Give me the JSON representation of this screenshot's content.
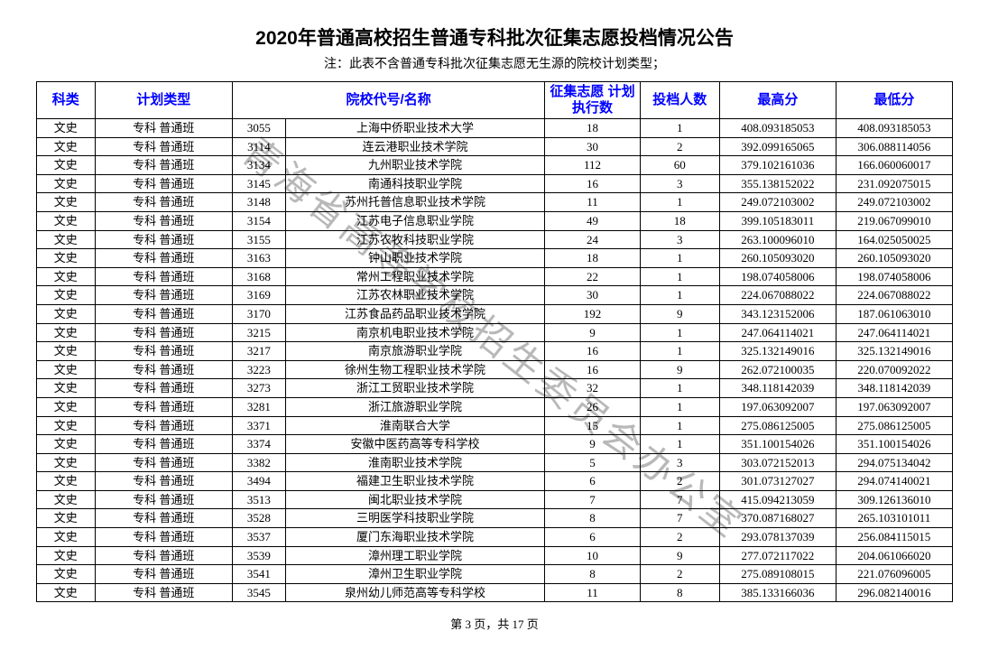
{
  "title": "2020年普通高校招生普通专科批次征集志愿投档情况公告",
  "subtitle": "注：此表不含普通专科批次征集志愿无生源的院校计划类型；",
  "watermark": "青海省高等学校招生委员会办公室",
  "footer": "第 3 页，共 17 页",
  "headers": {
    "col1": "科类",
    "col2": "计划类型",
    "col34": "院校代号/名称",
    "col5": "征集志愿\n计划执行数",
    "col6": "投档人数",
    "col7": "最高分",
    "col8": "最低分"
  },
  "rows": [
    {
      "subj": "文史",
      "plan": "专科 普通班",
      "code": "3055",
      "school": "上海中侨职业技术大学",
      "cnt": "18",
      "adm": "1",
      "max": "408.093185053",
      "min": "408.093185053"
    },
    {
      "subj": "文史",
      "plan": "专科 普通班",
      "code": "3114",
      "school": "连云港职业技术学院",
      "cnt": "30",
      "adm": "2",
      "max": "392.099165065",
      "min": "306.088114056"
    },
    {
      "subj": "文史",
      "plan": "专科 普通班",
      "code": "3134",
      "school": "九州职业技术学院",
      "cnt": "112",
      "adm": "60",
      "max": "379.102161036",
      "min": "166.060060017"
    },
    {
      "subj": "文史",
      "plan": "专科 普通班",
      "code": "3145",
      "school": "南通科技职业学院",
      "cnt": "16",
      "adm": "3",
      "max": "355.138152022",
      "min": "231.092075015"
    },
    {
      "subj": "文史",
      "plan": "专科 普通班",
      "code": "3148",
      "school": "苏州托普信息职业技术学院",
      "cnt": "11",
      "adm": "1",
      "max": "249.072103002",
      "min": "249.072103002"
    },
    {
      "subj": "文史",
      "plan": "专科 普通班",
      "code": "3154",
      "school": "江苏电子信息职业学院",
      "cnt": "49",
      "adm": "18",
      "max": "399.105183011",
      "min": "219.067099010"
    },
    {
      "subj": "文史",
      "plan": "专科 普通班",
      "code": "3155",
      "school": "江苏农牧科技职业学院",
      "cnt": "24",
      "adm": "3",
      "max": "263.100096010",
      "min": "164.025050025"
    },
    {
      "subj": "文史",
      "plan": "专科 普通班",
      "code": "3163",
      "school": "钟山职业技术学院",
      "cnt": "18",
      "adm": "1",
      "max": "260.105093020",
      "min": "260.105093020"
    },
    {
      "subj": "文史",
      "plan": "专科 普通班",
      "code": "3168",
      "school": "常州工程职业技术学院",
      "cnt": "22",
      "adm": "1",
      "max": "198.074058006",
      "min": "198.074058006"
    },
    {
      "subj": "文史",
      "plan": "专科 普通班",
      "code": "3169",
      "school": "江苏农林职业技术学院",
      "cnt": "30",
      "adm": "1",
      "max": "224.067088022",
      "min": "224.067088022"
    },
    {
      "subj": "文史",
      "plan": "专科 普通班",
      "code": "3170",
      "school": "江苏食品药品职业技术学院",
      "cnt": "192",
      "adm": "9",
      "max": "343.123152006",
      "min": "187.061063010"
    },
    {
      "subj": "文史",
      "plan": "专科 普通班",
      "code": "3215",
      "school": "南京机电职业技术学院",
      "cnt": "9",
      "adm": "1",
      "max": "247.064114021",
      "min": "247.064114021"
    },
    {
      "subj": "文史",
      "plan": "专科 普通班",
      "code": "3217",
      "school": "南京旅游职业学院",
      "cnt": "16",
      "adm": "1",
      "max": "325.132149016",
      "min": "325.132149016"
    },
    {
      "subj": "文史",
      "plan": "专科 普通班",
      "code": "3223",
      "school": "徐州生物工程职业技术学院",
      "cnt": "16",
      "adm": "9",
      "max": "262.072100035",
      "min": "220.070092022"
    },
    {
      "subj": "文史",
      "plan": "专科 普通班",
      "code": "3273",
      "school": "浙江工贸职业技术学院",
      "cnt": "32",
      "adm": "1",
      "max": "348.118142039",
      "min": "348.118142039"
    },
    {
      "subj": "文史",
      "plan": "专科 普通班",
      "code": "3281",
      "school": "浙江旅游职业学院",
      "cnt": "26",
      "adm": "1",
      "max": "197.063092007",
      "min": "197.063092007"
    },
    {
      "subj": "文史",
      "plan": "专科 普通班",
      "code": "3371",
      "school": "淮南联合大学",
      "cnt": "15",
      "adm": "1",
      "max": "275.086125005",
      "min": "275.086125005"
    },
    {
      "subj": "文史",
      "plan": "专科 普通班",
      "code": "3374",
      "school": "安徽中医药高等专科学校",
      "cnt": "9",
      "adm": "1",
      "max": "351.100154026",
      "min": "351.100154026"
    },
    {
      "subj": "文史",
      "plan": "专科 普通班",
      "code": "3382",
      "school": "淮南职业技术学院",
      "cnt": "5",
      "adm": "3",
      "max": "303.072152013",
      "min": "294.075134042"
    },
    {
      "subj": "文史",
      "plan": "专科 普通班",
      "code": "3494",
      "school": "福建卫生职业技术学院",
      "cnt": "6",
      "adm": "2",
      "max": "301.073127027",
      "min": "294.074140021"
    },
    {
      "subj": "文史",
      "plan": "专科 普通班",
      "code": "3513",
      "school": "闽北职业技术学院",
      "cnt": "7",
      "adm": "7",
      "max": "415.094213059",
      "min": "309.126136010"
    },
    {
      "subj": "文史",
      "plan": "专科 普通班",
      "code": "3528",
      "school": "三明医学科技职业学院",
      "cnt": "8",
      "adm": "7",
      "max": "370.087168027",
      "min": "265.103101011"
    },
    {
      "subj": "文史",
      "plan": "专科 普通班",
      "code": "3537",
      "school": "厦门东海职业技术学院",
      "cnt": "6",
      "adm": "2",
      "max": "293.078137039",
      "min": "256.084115015"
    },
    {
      "subj": "文史",
      "plan": "专科 普通班",
      "code": "3539",
      "school": "漳州理工职业学院",
      "cnt": "10",
      "adm": "9",
      "max": "277.072117022",
      "min": "204.061066020"
    },
    {
      "subj": "文史",
      "plan": "专科 普通班",
      "code": "3541",
      "school": "漳州卫生职业学院",
      "cnt": "8",
      "adm": "2",
      "max": "275.089108015",
      "min": "221.076096005"
    },
    {
      "subj": "文史",
      "plan": "专科 普通班",
      "code": "3545",
      "school": "泉州幼儿师范高等专科学校",
      "cnt": "11",
      "adm": "8",
      "max": "385.133166036",
      "min": "296.082140016"
    }
  ]
}
